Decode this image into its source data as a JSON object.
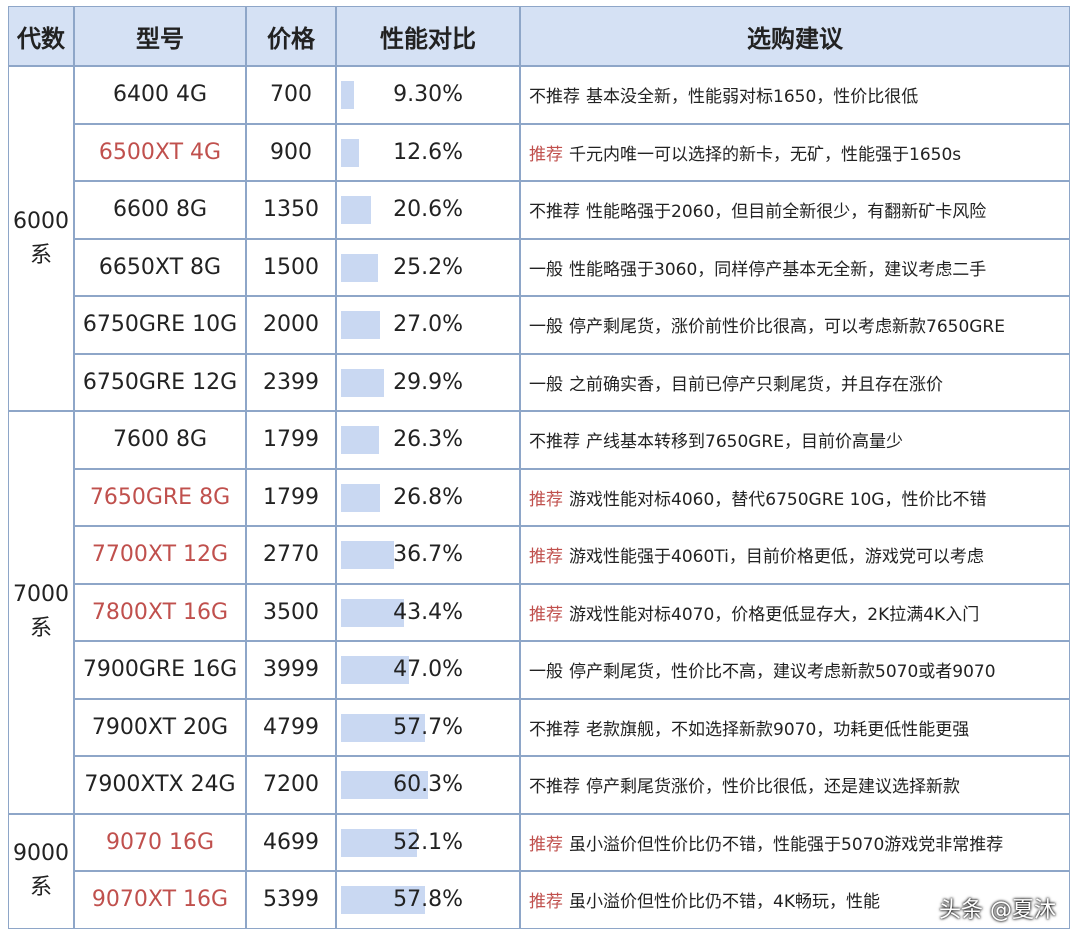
{
  "table": {
    "headers": [
      "代数",
      "型号",
      "价格",
      "性能对比",
      "选购建议"
    ],
    "highlight_color": "#c0504d",
    "groups": [
      {
        "lines": [
          "6000",
          "系"
        ],
        "rows": 6
      },
      {
        "lines": [
          "7000",
          "系"
        ],
        "rows": 7
      },
      {
        "lines": [
          "9000",
          "系"
        ],
        "rows": 2
      }
    ],
    "rows": [
      {
        "model": "6400 4G",
        "price": 700,
        "perf": {
          "value": 9.3,
          "label": "9.30%"
        },
        "tag": "不推荐",
        "advice": "基本没全新，性能弱对标1650，性价比很低",
        "highlight": false
      },
      {
        "model": "6500XT 4G",
        "price": 900,
        "perf": {
          "value": 12.6,
          "label": "12.6%"
        },
        "tag": "推荐",
        "advice": "千元内唯一可以选择的新卡，无矿，性能强于1650s",
        "highlight": true
      },
      {
        "model": "6600 8G",
        "price": 1350,
        "perf": {
          "value": 20.6,
          "label": "20.6%"
        },
        "tag": "不推荐",
        "advice": "性能略强于2060，但目前全新很少，有翻新矿卡风险",
        "highlight": false
      },
      {
        "model": "6650XT 8G",
        "price": 1500,
        "perf": {
          "value": 25.2,
          "label": "25.2%"
        },
        "tag": "一般",
        "advice": "性能略强于3060，同样停产基本无全新，建议考虑二手",
        "highlight": false
      },
      {
        "model": "6750GRE 10G",
        "price": 2000,
        "perf": {
          "value": 27.0,
          "label": "27.0%"
        },
        "tag": "一般",
        "advice": "停产剩尾货，涨价前性价比很高，可以考虑新款7650GRE",
        "highlight": false
      },
      {
        "model": "6750GRE 12G",
        "price": 2399,
        "perf": {
          "value": 29.9,
          "label": "29.9%"
        },
        "tag": "一般",
        "advice": "之前确实香，目前已停产只剩尾货，并且存在涨价",
        "highlight": false
      },
      {
        "model": "7600 8G",
        "price": 1799,
        "perf": {
          "value": 26.3,
          "label": "26.3%"
        },
        "tag": "不推荐",
        "advice": "产线基本转移到7650GRE，目前价高量少",
        "highlight": false
      },
      {
        "model": "7650GRE 8G",
        "price": 1799,
        "perf": {
          "value": 26.8,
          "label": "26.8%"
        },
        "tag": "推荐",
        "advice": "游戏性能对标4060，替代6750GRE 10G，性价比不错",
        "highlight": true
      },
      {
        "model": "7700XT 12G",
        "price": 2770,
        "perf": {
          "value": 36.7,
          "label": "36.7%"
        },
        "tag": "推荐",
        "advice": "游戏性能强于4060Ti，目前价格更低，游戏党可以考虑",
        "highlight": true
      },
      {
        "model": "7800XT 16G",
        "price": 3500,
        "perf": {
          "value": 43.4,
          "label": "43.4%"
        },
        "tag": "推荐",
        "advice": "游戏性能对标4070，价格更低显存大，2K拉满4K入门",
        "highlight": true
      },
      {
        "model": "7900GRE 16G",
        "price": 3999,
        "perf": {
          "value": 47.0,
          "label": "47.0%"
        },
        "tag": "一般",
        "advice": "停产剩尾货，性价比不高，建议考虑新款5070或者9070",
        "highlight": false
      },
      {
        "model": "7900XT 20G",
        "price": 4799,
        "perf": {
          "value": 57.7,
          "label": "57.7%"
        },
        "tag": "不推荐",
        "advice": "老款旗舰，不如选择新款9070，功耗更低性能更强",
        "highlight": false
      },
      {
        "model": "7900XTX 24G",
        "price": 7200,
        "perf": {
          "value": 60.3,
          "label": "60.3%"
        },
        "tag": "不推荐",
        "advice": "停产剩尾货涨价，性价比很低，还是建议选择新款",
        "highlight": false
      },
      {
        "model": "9070 16G",
        "price": 4699,
        "perf": {
          "value": 52.1,
          "label": "52.1%"
        },
        "tag": "推荐",
        "advice": "虽小溢价但性价比仍不错，性能强于5070游戏党非常推荐",
        "highlight": true
      },
      {
        "model": "9070XT 16G",
        "price": 5399,
        "perf": {
          "value": 57.8,
          "label": "57.8%"
        },
        "tag": "推荐",
        "advice": "虽小溢价但性价比仍不错，4K畅玩，性能",
        "highlight": true
      }
    ]
  },
  "watermark": "头条 @夏沐"
}
